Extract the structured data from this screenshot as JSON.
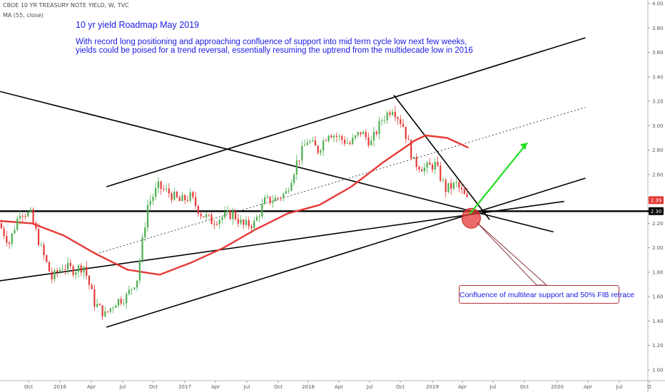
{
  "header": {
    "symbol_line": "CBOE 10 YR TREASURY NOTE YIELD, W, TVC",
    "indicator_line": "MA (55, close)"
  },
  "annotations": {
    "title": "10 yr yield Roadmap May 2019",
    "line1": "With record long positioning and approaching confluence of support into mid term cycle low next few weeks,",
    "line2": "yields could be poised for a trend reversal, essentially resuming the uptrend from the multidecade low in 2016",
    "callout": "Confluence of multitear support and 50% FIB retrace"
  },
  "chart_data": {
    "type": "line",
    "title": "CBOE 10 YR TREASURY NOTE YIELD, W, TVC",
    "ylim": [
      1.0,
      4.0
    ],
    "y_ticks": [
      "4.00",
      "3.80",
      "3.60",
      "3.40",
      "3.20",
      "3.00",
      "2.80",
      "2.60",
      "2.40",
      "2.20",
      "2.00",
      "1.80",
      "1.60",
      "1.40",
      "1.20",
      "1.00"
    ],
    "x_ticks": [
      "Oct",
      "2016",
      "Apr",
      "Jul",
      "Oct",
      "2017",
      "Apr",
      "Jul",
      "Oct",
      "2018",
      "Apr",
      "Jul",
      "Oct",
      "2019",
      "Apr",
      "Jul",
      "Oct",
      "2020",
      "Apr",
      "Jul",
      "O"
    ],
    "x_range": [
      "2015-09",
      "2020-10"
    ],
    "price_labels": [
      {
        "text": "2.39",
        "value": 2.39,
        "color": "#e53935"
      },
      {
        "text": "2.30",
        "value": 2.3,
        "color": "#000000"
      }
    ],
    "colors": {
      "up": "#4caf50",
      "down": "#e53935",
      "ma": "#e53935",
      "trendline": "#000000",
      "arrow": "#22dd22",
      "callout_border": "#b0353a",
      "callout_fill": "#e53935"
    },
    "series": [
      {
        "name": "CBOE 10 YR TREASURY NOTE YIELD",
        "kind": "weekly-close",
        "points": [
          [
            "2015-09",
            2.2
          ],
          [
            "2015-10",
            2.04
          ],
          [
            "2015-11",
            2.3
          ],
          [
            "2015-12",
            2.27
          ],
          [
            "2016-01",
            1.99
          ],
          [
            "2016-02",
            1.75
          ],
          [
            "2016-03",
            1.85
          ],
          [
            "2016-04",
            1.82
          ],
          [
            "2016-05",
            1.85
          ],
          [
            "2016-06",
            1.55
          ],
          [
            "2016-07",
            1.45
          ],
          [
            "2016-08",
            1.56
          ],
          [
            "2016-09",
            1.6
          ],
          [
            "2016-10",
            1.75
          ],
          [
            "2016-11",
            2.35
          ],
          [
            "2016-12",
            2.5
          ],
          [
            "2017-01",
            2.45
          ],
          [
            "2017-02",
            2.38
          ],
          [
            "2017-03",
            2.42
          ],
          [
            "2017-04",
            2.28
          ],
          [
            "2017-05",
            2.22
          ],
          [
            "2017-06",
            2.25
          ],
          [
            "2017-07",
            2.28
          ],
          [
            "2017-08",
            2.18
          ],
          [
            "2017-09",
            2.2
          ],
          [
            "2017-10",
            2.38
          ],
          [
            "2017-11",
            2.4
          ],
          [
            "2017-12",
            2.45
          ],
          [
            "2018-01",
            2.7
          ],
          [
            "2018-02",
            2.88
          ],
          [
            "2018-03",
            2.8
          ],
          [
            "2018-04",
            2.95
          ],
          [
            "2018-05",
            2.9
          ],
          [
            "2018-06",
            2.85
          ],
          [
            "2018-07",
            2.95
          ],
          [
            "2018-08",
            2.86
          ],
          [
            "2018-09",
            3.05
          ],
          [
            "2018-10",
            3.15
          ],
          [
            "2018-11",
            3.0
          ],
          [
            "2018-12",
            2.7
          ],
          [
            "2019-01",
            2.65
          ],
          [
            "2019-02",
            2.68
          ],
          [
            "2019-03",
            2.48
          ],
          [
            "2019-04",
            2.52
          ],
          [
            "2019-05",
            2.39
          ]
        ]
      },
      {
        "name": "MA (55, close)",
        "kind": "moving-average",
        "points": [
          [
            "2015-09",
            2.22
          ],
          [
            "2015-12",
            2.2
          ],
          [
            "2016-03",
            2.1
          ],
          [
            "2016-06",
            1.95
          ],
          [
            "2016-09",
            1.82
          ],
          [
            "2016-12",
            1.78
          ],
          [
            "2017-03",
            1.88
          ],
          [
            "2017-06",
            2.0
          ],
          [
            "2017-09",
            2.15
          ],
          [
            "2017-12",
            2.28
          ],
          [
            "2018-03",
            2.35
          ],
          [
            "2018-06",
            2.5
          ],
          [
            "2018-09",
            2.7
          ],
          [
            "2018-12",
            2.88
          ],
          [
            "2019-01",
            2.92
          ],
          [
            "2019-03",
            2.9
          ],
          [
            "2019-05",
            2.82
          ]
        ]
      }
    ],
    "trendlines": [
      {
        "name": "upper-channel",
        "from": [
          "2016-07",
          2.5
        ],
        "to": [
          "2020-04",
          3.72
        ]
      },
      {
        "name": "channel-midline",
        "style": "dashed",
        "from": [
          "2016-06",
          1.95
        ],
        "to": [
          "2020-04",
          3.15
        ]
      },
      {
        "name": "long-uptrend-support",
        "from": [
          "2016-07",
          1.35
        ],
        "to": [
          "2020-04",
          2.57
        ]
      },
      {
        "name": "lower-rising-support",
        "from": [
          "2015-09",
          1.73
        ],
        "to": [
          "2020-02",
          2.38
        ]
      },
      {
        "name": "long-downtrend",
        "from": [
          "2015-09",
          3.28
        ],
        "to": [
          "2020-01",
          2.13
        ]
      },
      {
        "name": "2018-top-downtrend",
        "from": [
          "2018-10",
          3.25
        ],
        "to": [
          "2019-07",
          2.23
        ]
      },
      {
        "name": "horizontal-support",
        "from": [
          "2015-09",
          2.3
        ],
        "to": [
          "2020-10",
          2.3
        ]
      }
    ]
  }
}
